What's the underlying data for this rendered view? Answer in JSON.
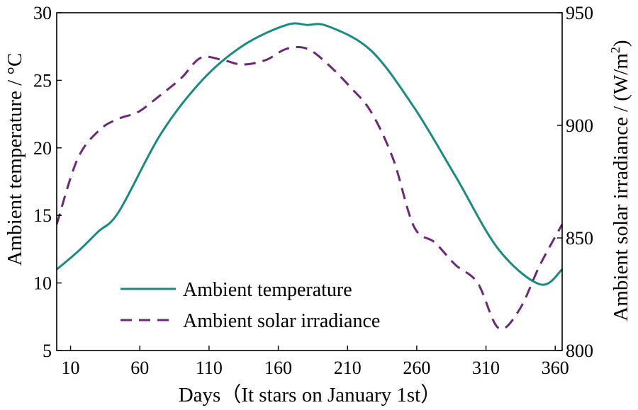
{
  "chart_data": {
    "type": "line",
    "xlabel": "Days（It stars on January 1st）",
    "ylabel_left": "Ambient temperature / °C",
    "ylabel_right_prefix": "Ambient solar irradiance / (W/m",
    "ylabel_right_sup": "2",
    "ylabel_right_suffix": ")",
    "xlim": [
      0,
      365
    ],
    "ylim_left": [
      5,
      30
    ],
    "ylim_right": [
      800,
      950
    ],
    "x_ticks": [
      10,
      60,
      110,
      160,
      210,
      260,
      310,
      360
    ],
    "y_left_ticks": [
      5,
      10,
      15,
      20,
      25,
      30
    ],
    "y_right_ticks": [
      800,
      850,
      900,
      950
    ],
    "series": [
      {
        "name": "Ambient temperature",
        "axis": "left",
        "color": "#1a8a82",
        "dash": "solid",
        "x": [
          0,
          15,
          30,
          45,
          75,
          105,
          135,
          166,
          181,
          196,
          227,
          258,
          288,
          319,
          349,
          365
        ],
        "y": [
          11.0,
          12.3,
          13.8,
          15.3,
          21.0,
          25.0,
          27.6,
          29.1,
          29.1,
          29.0,
          27.2,
          23.0,
          17.9,
          12.5,
          9.9,
          11.0
        ]
      },
      {
        "name": "Ambient solar irradiance",
        "axis": "right",
        "color": "#6b2a78",
        "dash": "dashed",
        "x": [
          0,
          15,
          31,
          45,
          59,
          74,
          90,
          104,
          120,
          134,
          151,
          166,
          181,
          196,
          212,
          227,
          243,
          258,
          273,
          288,
          304,
          319,
          334,
          349,
          365
        ],
        "y": [
          856,
          885,
          898,
          903,
          906,
          913,
          921,
          930,
          929,
          927,
          929,
          934,
          934,
          927,
          917,
          906,
          885,
          855,
          848,
          838,
          830,
          810,
          818,
          838,
          856
        ]
      }
    ],
    "legend_position": "bottom-left"
  }
}
